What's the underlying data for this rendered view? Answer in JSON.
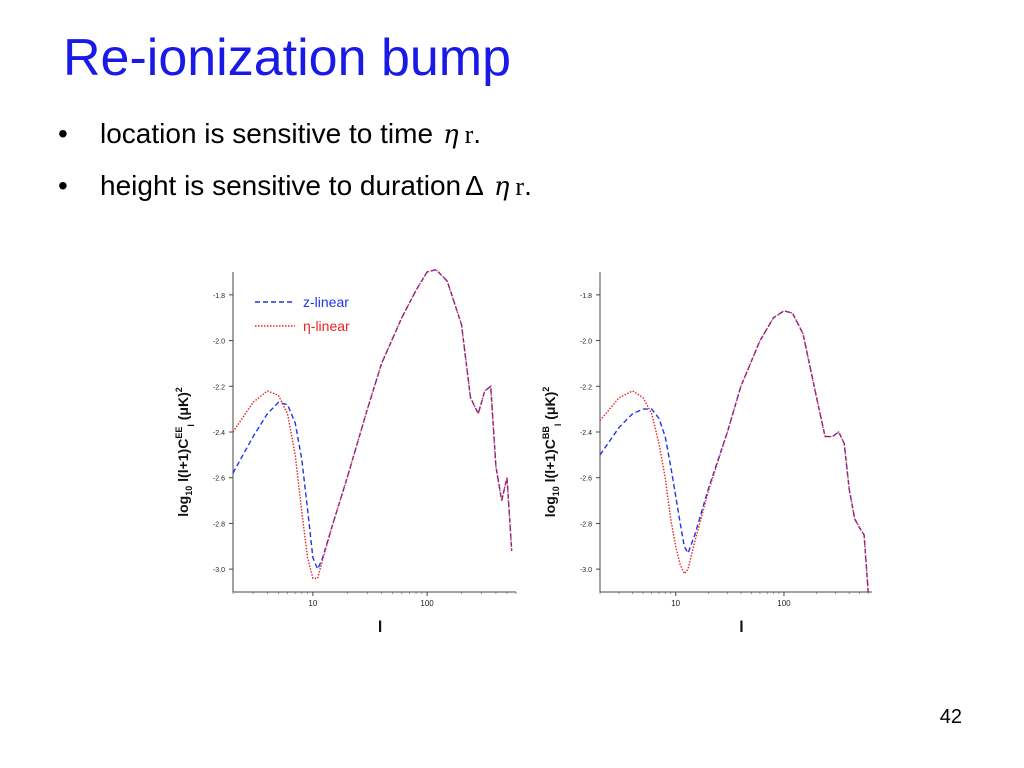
{
  "slide": {
    "title": "Re-ionization bump",
    "bullets": [
      {
        "text": "location is sensitive to time",
        "symbol": "η",
        "subscript": "r",
        "end": ".",
        "delta": ""
      },
      {
        "text": "height is sensitive to duration",
        "symbol": "η",
        "subscript": "r",
        "end": ".",
        "delta": "Δ"
      }
    ],
    "page_number": "42"
  },
  "chart_data": [
    {
      "type": "line",
      "ylabel": "log10 l(l+1)C^EE_l (μK)^2",
      "ylabel_parts": {
        "main": "log",
        "sub": "10",
        "mid": " l(l+1)C",
        "sup": "EE",
        "sub2": "l",
        "unit": " (μK)",
        "unit_sup": "2"
      },
      "xlabel": "l",
      "x_scale": "log",
      "xlim": [
        2,
        600
      ],
      "ylim": [
        -3.1,
        -1.7
      ],
      "x_ticks": [
        {
          "v": 10,
          "label": "10"
        },
        {
          "v": 100,
          "label": "100"
        }
      ],
      "y_ticks": [
        {
          "v": -1.8,
          "label": "-1.8"
        },
        {
          "v": -2.0,
          "label": "-2.0"
        },
        {
          "v": -2.2,
          "label": "-2.2"
        },
        {
          "v": -2.4,
          "label": "-2.4"
        },
        {
          "v": -2.6,
          "label": "-2.6"
        },
        {
          "v": -2.8,
          "label": "-2.8"
        },
        {
          "v": -3.0,
          "label": "-3.0"
        }
      ],
      "legend_position": "top-left",
      "series": [
        {
          "name": "z-linear",
          "color": "#2233ee",
          "style": "dashed",
          "x": [
            2,
            3,
            4,
            5,
            6,
            7,
            8,
            9,
            10,
            11,
            12,
            15,
            20,
            30,
            40,
            60,
            80,
            100,
            120,
            150,
            200,
            240,
            280,
            320,
            360,
            400,
            450,
            500,
            550
          ],
          "y": [
            -2.58,
            -2.42,
            -2.32,
            -2.27,
            -2.28,
            -2.36,
            -2.52,
            -2.74,
            -2.95,
            -3.0,
            -2.96,
            -2.8,
            -2.6,
            -2.3,
            -2.1,
            -1.9,
            -1.78,
            -1.7,
            -1.69,
            -1.74,
            -1.93,
            -2.25,
            -2.32,
            -2.22,
            -2.2,
            -2.55,
            -2.7,
            -2.6,
            -2.92
          ]
        },
        {
          "name": "η-linear",
          "color": "#ee2222",
          "style": "dotted",
          "x": [
            2,
            3,
            4,
            5,
            6,
            7,
            8,
            9,
            10,
            11,
            12,
            15,
            20,
            30,
            40,
            60,
            80,
            100,
            120,
            150,
            200,
            240,
            280,
            320,
            360,
            400,
            450,
            500,
            550
          ],
          "y": [
            -2.4,
            -2.27,
            -2.22,
            -2.24,
            -2.32,
            -2.5,
            -2.75,
            -2.95,
            -3.04,
            -3.04,
            -2.97,
            -2.8,
            -2.6,
            -2.3,
            -2.1,
            -1.9,
            -1.78,
            -1.7,
            -1.69,
            -1.74,
            -1.93,
            -2.25,
            -2.32,
            -2.22,
            -2.2,
            -2.55,
            -2.7,
            -2.6,
            -2.92
          ]
        }
      ]
    },
    {
      "type": "line",
      "ylabel": "log10 l(l+1)C^BB_l (μK)^2",
      "ylabel_parts": {
        "main": "log",
        "sub": "10",
        "mid": " l(l+1)C",
        "sup": "BB",
        "sub2": "l",
        "unit": " (μK)",
        "unit_sup": "2"
      },
      "xlabel": "l",
      "x_scale": "log",
      "xlim": [
        2,
        650
      ],
      "ylim": [
        -3.1,
        -1.7
      ],
      "x_ticks": [
        {
          "v": 10,
          "label": "10"
        },
        {
          "v": 100,
          "label": "100"
        }
      ],
      "y_ticks": [
        {
          "v": -1.8,
          "label": "-1.8"
        },
        {
          "v": -2.0,
          "label": "-2.0"
        },
        {
          "v": -2.2,
          "label": "-2.2"
        },
        {
          "v": -2.4,
          "label": "-2.4"
        },
        {
          "v": -2.6,
          "label": "-2.6"
        },
        {
          "v": -2.8,
          "label": "-2.8"
        },
        {
          "v": -3.0,
          "label": "-3.0"
        }
      ],
      "legend_position": "none",
      "series": [
        {
          "name": "",
          "color": "#2233ee",
          "style": "dashed",
          "x": [
            2,
            3,
            4,
            5,
            6,
            7,
            8,
            9,
            10,
            11,
            12,
            13,
            15,
            20,
            30,
            40,
            60,
            80,
            100,
            120,
            150,
            200,
            240,
            280,
            320,
            360,
            400,
            450,
            500,
            550,
            600
          ],
          "y": [
            -2.5,
            -2.38,
            -2.32,
            -2.3,
            -2.3,
            -2.34,
            -2.42,
            -2.55,
            -2.68,
            -2.8,
            -2.9,
            -2.93,
            -2.85,
            -2.65,
            -2.4,
            -2.2,
            -2.0,
            -1.9,
            -1.87,
            -1.88,
            -1.97,
            -2.25,
            -2.42,
            -2.42,
            -2.4,
            -2.45,
            -2.65,
            -2.78,
            -2.82,
            -2.85,
            -3.1
          ]
        },
        {
          "name": "",
          "color": "#ee2222",
          "style": "dotted",
          "x": [
            2,
            3,
            4,
            5,
            6,
            7,
            8,
            9,
            10,
            11,
            12,
            13,
            15,
            20,
            30,
            40,
            60,
            80,
            100,
            120,
            150,
            200,
            240,
            280,
            320,
            360,
            400,
            450,
            500,
            550,
            600
          ],
          "y": [
            -2.35,
            -2.25,
            -2.22,
            -2.25,
            -2.32,
            -2.45,
            -2.6,
            -2.78,
            -2.9,
            -2.98,
            -3.02,
            -3.0,
            -2.88,
            -2.66,
            -2.4,
            -2.2,
            -2.0,
            -1.9,
            -1.87,
            -1.88,
            -1.97,
            -2.25,
            -2.42,
            -2.42,
            -2.4,
            -2.45,
            -2.65,
            -2.78,
            -2.82,
            -2.85,
            -3.1
          ]
        }
      ]
    }
  ]
}
